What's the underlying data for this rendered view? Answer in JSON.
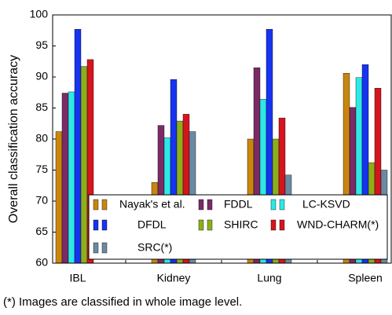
{
  "chart_data": {
    "type": "bar",
    "y_label": "Overall classification accuracy",
    "categories": [
      "IBL",
      "Kidney",
      "Lung",
      "Spleen"
    ],
    "series": [
      {
        "name": "Nayak's et al.",
        "color": "#c9860e",
        "values": [
          81.2,
          73.0,
          80.0,
          90.6
        ]
      },
      {
        "name": "FDDL",
        "color": "#7a2b66",
        "values": [
          87.4,
          82.2,
          91.5,
          85.1
        ]
      },
      {
        "name": "LC-KSVD",
        "color": "#2ee8e6",
        "values": [
          87.6,
          80.2,
          86.4,
          89.9
        ]
      },
      {
        "name": "DFDL",
        "color": "#1634f0",
        "values": [
          97.7,
          89.6,
          97.7,
          92.0
        ]
      },
      {
        "name": "SHIRC",
        "color": "#8daf19",
        "values": [
          91.7,
          82.9,
          80.0,
          76.2
        ]
      },
      {
        "name": "WND-CHARM(*)",
        "color": "#d6141e",
        "values": [
          92.8,
          84.0,
          83.4,
          88.2
        ]
      },
      {
        "name": "SRC(*)",
        "color": "#6a8aa2",
        "values": [
          null,
          81.2,
          74.2,
          75.0
        ]
      }
    ],
    "ylim": [
      60,
      100
    ],
    "yticks": [
      60,
      65,
      70,
      75,
      80,
      85,
      90,
      95,
      100
    ],
    "footnote": "(*) Images are classified in whole image level."
  }
}
